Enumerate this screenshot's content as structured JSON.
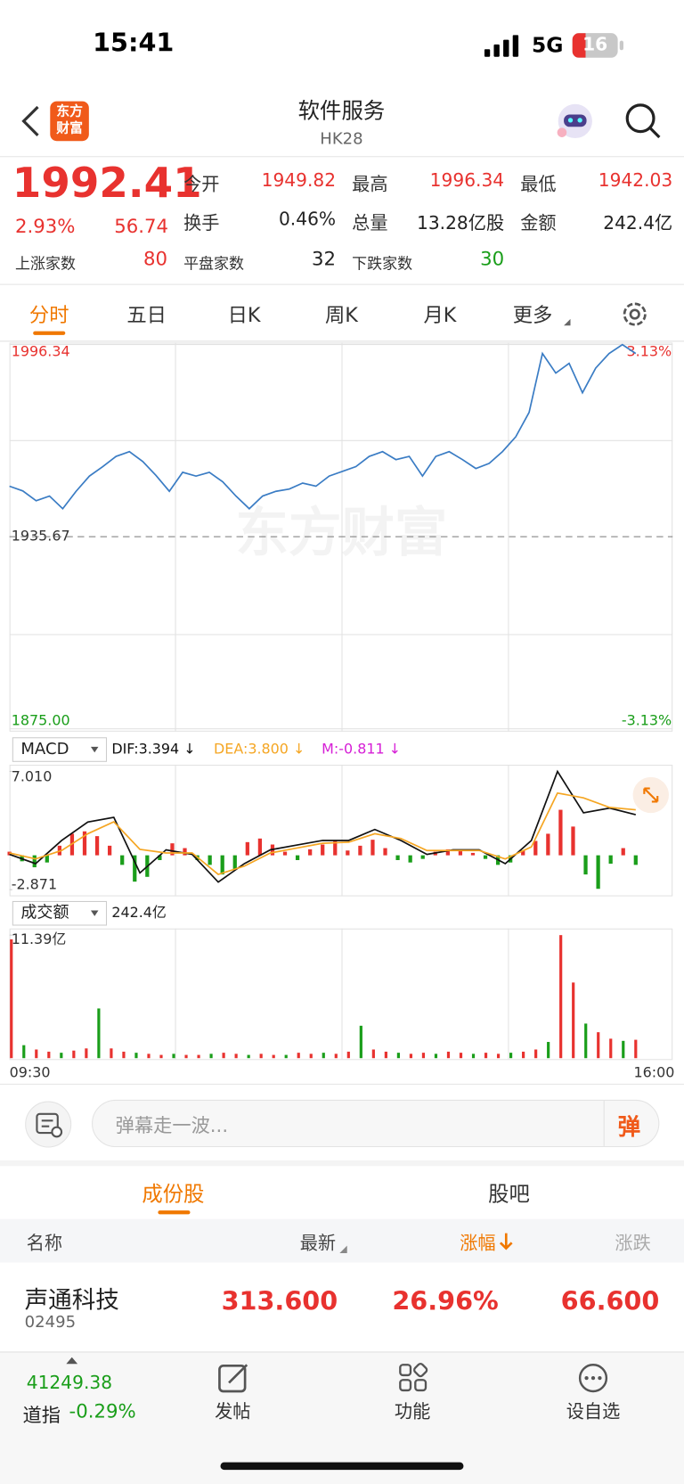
{
  "status_bar": {
    "time": "15:41",
    "network": "5G",
    "battery": "16"
  },
  "header": {
    "logo": [
      "东方",
      "财富"
    ],
    "title": "软件服务",
    "code": "HK28"
  },
  "quote": {
    "price": "1992.41",
    "change_pct": "2.93%",
    "change": "56.74",
    "fields": [
      {
        "label": "今开",
        "value": "1949.82"
      },
      {
        "label": "最高",
        "value": "1996.34"
      },
      {
        "label": "最低",
        "value": "1942.03"
      },
      {
        "label": "换手",
        "value": "0.46%"
      },
      {
        "label": "总量",
        "value": "13.28亿股"
      },
      {
        "label": "金额",
        "value": "242.4亿"
      }
    ]
  },
  "breadth": [
    {
      "label": "上涨家数",
      "value": "80"
    },
    {
      "label": "平盘家数",
      "value": "32"
    },
    {
      "label": "下跌家数",
      "value": "30"
    }
  ],
  "period_tabs": [
    "分时",
    "五日",
    "日K",
    "周K",
    "月K",
    "更多"
  ],
  "colors": {
    "line": "#3a7cc4",
    "up": "#e8322f",
    "down": "#1a9e1a",
    "dif": "#111111",
    "dea": "#f5a623",
    "m": "#d61fd6"
  },
  "intraday": {
    "watermark": "东方财富",
    "yticks": [
      {
        "value": 1996.34,
        "label": "1996.34"
      },
      {
        "value": 1935.67,
        "label": "1935.67"
      },
      {
        "value": 1875.0,
        "label": "1875.00"
      }
    ],
    "pct_top": "3.13%",
    "pct_bottom": "-3.13%",
    "values": [
      1951.6,
      1950.1,
      1947,
      1948.5,
      1944.5,
      1950,
      1954.8,
      1957.8,
      1961,
      1962.5,
      1959.4,
      1955,
      1950,
      1956,
      1954.8,
      1956,
      1953,
      1948.5,
      1944.5,
      1948.5,
      1950,
      1950.7,
      1952.6,
      1951.6,
      1954.8,
      1956.3,
      1957.8,
      1961,
      1962.5,
      1960,
      1961,
      1954.8,
      1961,
      1962.5,
      1960,
      1957.2,
      1958.8,
      1962.5,
      1967.2,
      1974.9,
      1993.5,
      1987.3,
      1990.4,
      1981.1,
      1988.9,
      1993.5,
      1996.3,
      1993.5
    ],
    "xlabels": [
      "09:30",
      "16:00"
    ]
  },
  "macd": {
    "selector": "MACD",
    "dif_label": "DIF:3.394 ↓",
    "dea_label": "DEA:3.800 ↓",
    "m_label": "M:-0.811 ↓",
    "yticks": [
      {
        "value": 7.01,
        "label": "7.010"
      },
      -2.871
    ],
    "dif": [
      0.08,
      -0.7,
      1.24,
      2.78,
      3.17,
      -1.47,
      0.46,
      0.08,
      -2.24,
      -0.7,
      0.46,
      0.85,
      1.24,
      1.24,
      2.16,
      1.24,
      0.08,
      0.46,
      0.46,
      -0.7,
      1.24,
      7.0,
      3.55,
      3.94,
      3.39
    ],
    "dea": [
      0.2,
      -0.3,
      0.4,
      1.8,
      2.8,
      0.5,
      0.2,
      0.2,
      -1.6,
      -0.9,
      0.2,
      0.6,
      1.0,
      1.1,
      1.8,
      1.4,
      0.4,
      0.4,
      0.4,
      -0.3,
      0.7,
      5.2,
      4.8,
      4.0,
      3.8
    ],
    "m": [
      0.3,
      -0.5,
      -1.0,
      -0.6,
      0.8,
      1.8,
      2.0,
      1.6,
      0.8,
      -0.8,
      -2.2,
      -1.8,
      -0.4,
      1.0,
      0.6,
      -0.4,
      -0.8,
      -1.6,
      -1.2,
      1.1,
      1.4,
      0.9,
      0.3,
      -0.4,
      0.5,
      0.9,
      1.2,
      0.4,
      0.8,
      1.3,
      0.6,
      -0.4,
      -0.6,
      -0.3,
      0.3,
      0.5,
      0.4,
      0.2,
      -0.3,
      -0.8,
      -0.6,
      0.4,
      1.2,
      1.8,
      3.8,
      2.4,
      -1.6,
      -2.8,
      -0.7,
      0.6,
      -0.8
    ]
  },
  "volume": {
    "selector": "成交额",
    "total": "242.4亿",
    "yticks": [
      {
        "value": 11.39,
        "label": "11.39亿"
      }
    ],
    "values": [
      11.0,
      1.2,
      0.8,
      0.6,
      0.5,
      0.7,
      0.9,
      4.6,
      0.9,
      0.6,
      0.5,
      0.4,
      0.3,
      0.4,
      0.3,
      0.3,
      0.4,
      0.5,
      0.4,
      0.3,
      0.4,
      0.3,
      0.3,
      0.5,
      0.4,
      0.5,
      0.4,
      0.6,
      3.0,
      0.8,
      0.6,
      0.5,
      0.4,
      0.5,
      0.4,
      0.6,
      0.5,
      0.4,
      0.5,
      0.4,
      0.5,
      0.6,
      0.8,
      1.5,
      11.39,
      7.0,
      3.2,
      2.4,
      1.8,
      1.6,
      1.7
    ]
  },
  "comment": {
    "placeholder": "弹幕走一波...",
    "button": "弹"
  },
  "section_tabs": [
    "成份股",
    "股吧"
  ],
  "table": {
    "columns": [
      "名称",
      "最新",
      "涨幅",
      "涨跌"
    ],
    "rows": [
      {
        "name": "声通科技",
        "code": "02495",
        "cells": [
          "313.600",
          "26.96%",
          "66.600"
        ]
      }
    ]
  },
  "footer": {
    "index_value": "41249.38",
    "index_name": "道指",
    "index_change": "-0.29%",
    "nav": [
      "发帖",
      "功能",
      "设自选"
    ]
  }
}
